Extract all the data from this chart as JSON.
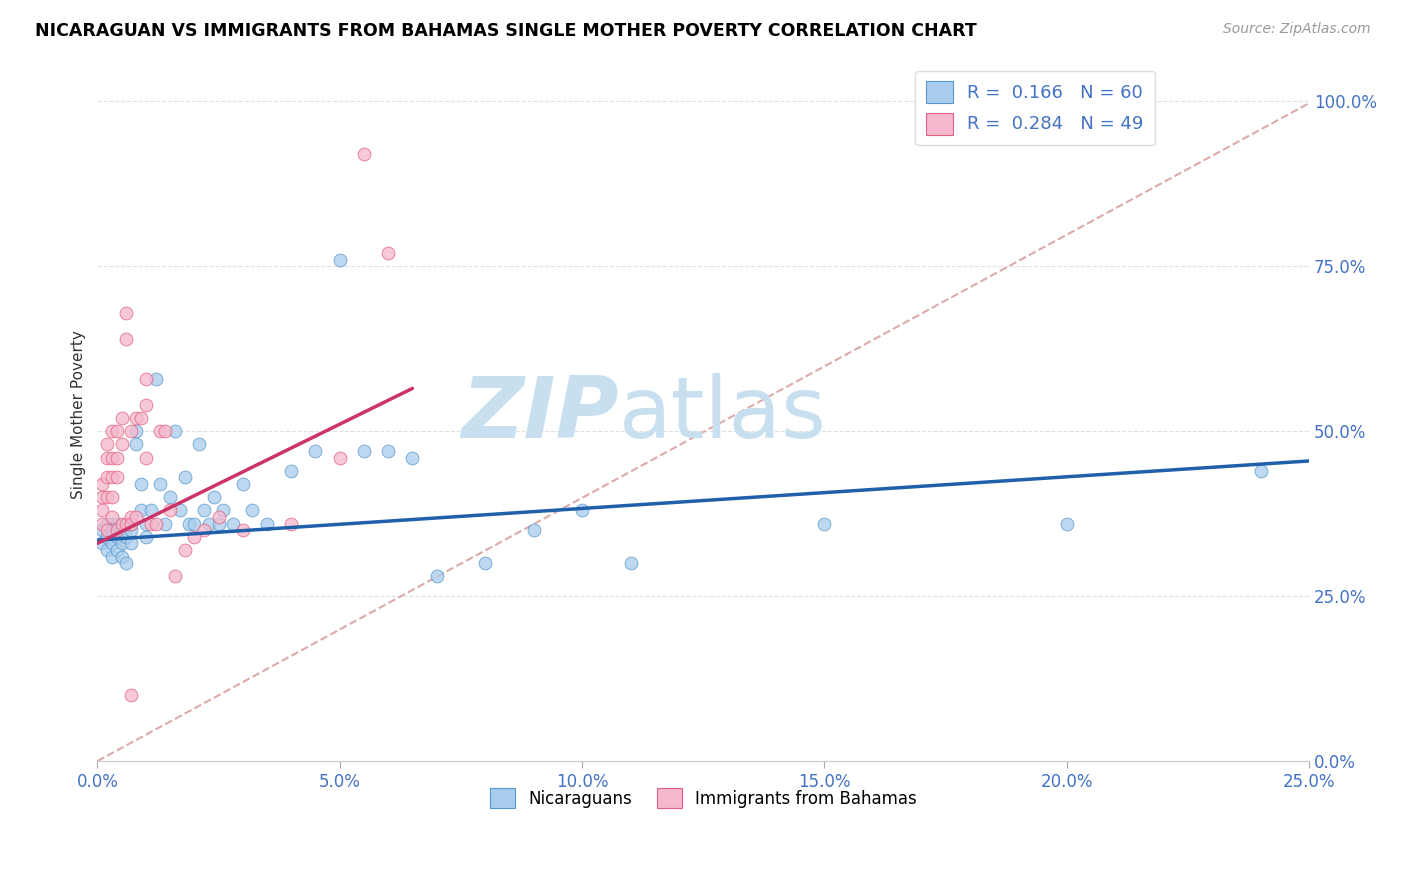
{
  "title": "NICARAGUAN VS IMMIGRANTS FROM BAHAMAS SINGLE MOTHER POVERTY CORRELATION CHART",
  "source": "Source: ZipAtlas.com",
  "ylabel": "Single Mother Poverty",
  "legend_label1": "Nicaraguans",
  "legend_label2": "Immigrants from Bahamas",
  "R1": 0.166,
  "N1": 60,
  "R2": 0.284,
  "N2": 49,
  "xmin": 0.0,
  "xmax": 0.25,
  "ymin": 0.0,
  "ymax": 1.05,
  "color_blue_fill": "#aaccee",
  "color_blue_edge": "#5599cc",
  "color_pink_fill": "#f5b8cc",
  "color_pink_edge": "#e06080",
  "color_blue_line": "#2060aa",
  "color_pink_line": "#cc3366",
  "ref_line_color": "#ddaaaa",
  "watermark_zip_color": "#c8dff0",
  "watermark_atlas_color": "#c8dff0",
  "blue_x": [
    0.001,
    0.001,
    0.002,
    0.002,
    0.002,
    0.003,
    0.003,
    0.003,
    0.003,
    0.004,
    0.004,
    0.004,
    0.005,
    0.005,
    0.005,
    0.006,
    0.006,
    0.007,
    0.007,
    0.007,
    0.008,
    0.008,
    0.009,
    0.009,
    0.01,
    0.01,
    0.011,
    0.012,
    0.013,
    0.014,
    0.015,
    0.016,
    0.017,
    0.018,
    0.019,
    0.02,
    0.021,
    0.022,
    0.023,
    0.024,
    0.025,
    0.026,
    0.028,
    0.03,
    0.032,
    0.035,
    0.04,
    0.045,
    0.05,
    0.055,
    0.06,
    0.065,
    0.07,
    0.08,
    0.09,
    0.1,
    0.11,
    0.15,
    0.2,
    0.24
  ],
  "blue_y": [
    0.33,
    0.35,
    0.34,
    0.32,
    0.36,
    0.36,
    0.33,
    0.31,
    0.35,
    0.36,
    0.34,
    0.32,
    0.35,
    0.33,
    0.31,
    0.34,
    0.3,
    0.35,
    0.33,
    0.36,
    0.48,
    0.5,
    0.42,
    0.38,
    0.36,
    0.34,
    0.38,
    0.58,
    0.42,
    0.36,
    0.4,
    0.5,
    0.38,
    0.43,
    0.36,
    0.36,
    0.48,
    0.38,
    0.36,
    0.4,
    0.36,
    0.38,
    0.36,
    0.42,
    0.38,
    0.36,
    0.44,
    0.47,
    0.76,
    0.47,
    0.47,
    0.46,
    0.28,
    0.3,
    0.35,
    0.38,
    0.3,
    0.36,
    0.36,
    0.44
  ],
  "pink_x": [
    0.001,
    0.001,
    0.001,
    0.001,
    0.002,
    0.002,
    0.002,
    0.002,
    0.002,
    0.003,
    0.003,
    0.003,
    0.003,
    0.003,
    0.004,
    0.004,
    0.004,
    0.004,
    0.005,
    0.005,
    0.005,
    0.006,
    0.006,
    0.006,
    0.007,
    0.007,
    0.007,
    0.008,
    0.008,
    0.009,
    0.01,
    0.01,
    0.011,
    0.012,
    0.013,
    0.014,
    0.015,
    0.016,
    0.018,
    0.02,
    0.022,
    0.025,
    0.03,
    0.04,
    0.05,
    0.055,
    0.06,
    0.01,
    0.007
  ],
  "pink_y": [
    0.36,
    0.38,
    0.4,
    0.42,
    0.4,
    0.43,
    0.46,
    0.48,
    0.35,
    0.37,
    0.4,
    0.43,
    0.46,
    0.5,
    0.43,
    0.46,
    0.5,
    0.35,
    0.36,
    0.48,
    0.52,
    0.64,
    0.68,
    0.36,
    0.37,
    0.5,
    0.36,
    0.37,
    0.52,
    0.52,
    0.54,
    0.58,
    0.36,
    0.36,
    0.5,
    0.5,
    0.38,
    0.28,
    0.32,
    0.34,
    0.35,
    0.37,
    0.35,
    0.36,
    0.46,
    0.92,
    0.77,
    0.46,
    0.1
  ]
}
